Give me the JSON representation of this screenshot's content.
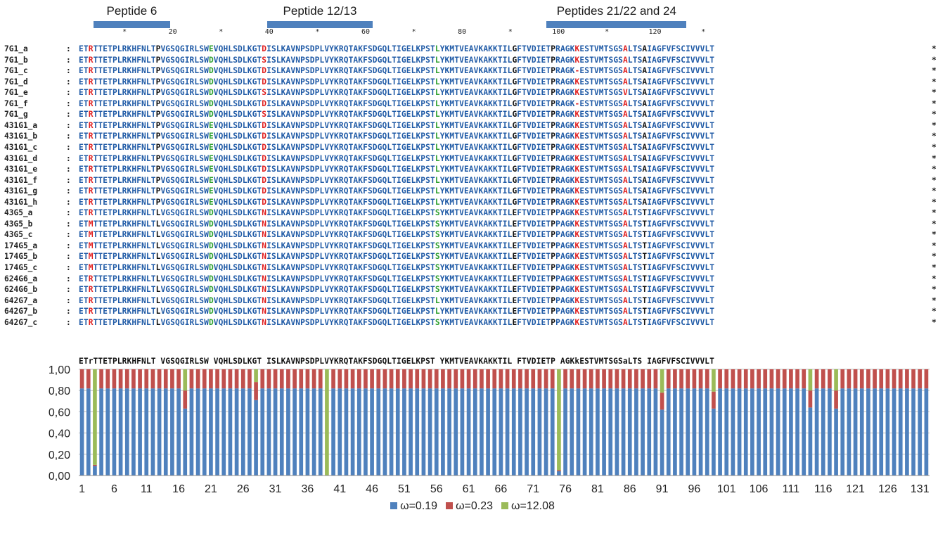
{
  "peptides": [
    {
      "label": "Peptide 6",
      "from": 4,
      "to": 19
    },
    {
      "label": "Peptide 12/13",
      "from": 40,
      "to": 61
    },
    {
      "label": "Peptides 21/22 and 24",
      "from": 98,
      "to": 126
    }
  ],
  "ruler": [
    {
      "pos": 10,
      "text": "*"
    },
    {
      "pos": 20,
      "text": "20"
    },
    {
      "pos": 30,
      "text": "*"
    },
    {
      "pos": 40,
      "text": "40"
    },
    {
      "pos": 50,
      "text": "*"
    },
    {
      "pos": 60,
      "text": "60"
    },
    {
      "pos": 70,
      "text": "*"
    },
    {
      "pos": 80,
      "text": "80"
    },
    {
      "pos": 90,
      "text": "*"
    },
    {
      "pos": 100,
      "text": "100"
    },
    {
      "pos": 110,
      "text": "*"
    },
    {
      "pos": 120,
      "text": "120"
    },
    {
      "pos": 130,
      "text": "*"
    }
  ],
  "alignment": {
    "colon": ":",
    "end_mark": "*",
    "sequences": [
      {
        "name": "7G1_a",
        "seq": "ETRTTETPLRKHFNLTPVGSQGIRLSWEVQHLSDLKGTDISLKAVNPSDPLVYKRQTAKFSDGQLTIGELKPSTLYKMTVEAVKAKKTILGFTVDIETPRAGKKESTVMTSGSALTSAIAGFVFSCIVVVLT"
      },
      {
        "name": "7G1_b",
        "seq": "ETRTTETPLRKHFNLTPVGSQGIRLSWDVQHLSDLKGTSISLKAVNPSDPLVYKRQTAKFSDGQLTIGELKPSTLYKMTVEAVKAKKTILGFTVDIETPRAGKKESTVMTSGSALTSAIAGFVFSCIVVVLT"
      },
      {
        "name": "7G1_c",
        "seq": "ETRTTETPLRKHFNLTPVGSQGIRLSWDVQHLSDLKGTDISLKAVNPSDPLVYKRQTAKFSDGQLTIGELKPSTLYKMTVEAVKAKKTILGFTVDIETPRAGK-ESTVMTSGSALTSAIAGFVFSCIVVVLT"
      },
      {
        "name": "7G1_d",
        "seq": "ETRTTETPLRKHFNLTPVGSQGIRLSWDVQHLSDLKGTDISLKAVNPSDPLVYKRQTAKFSDGQLTIGELKPSTLYKMTVEAVKAKKTILGFTVDIETPRAGKKESTVMTSGSALTSAIAGFVFSCIVVVLT"
      },
      {
        "name": "7G1_e",
        "seq": "ETRTTETPLRKHFNLTPVGSQGIRLSWDVQHLSDLKGTSISLKAVNPSDPLVYKRQTAKFSDGQLTIGELKPSTLYKMTVEAVKAKKTILGFTVDIETPRAGKKESTVMTSGSVLTSAIAGFVFSCIVVVLT"
      },
      {
        "name": "7G1_f",
        "seq": "ETRTTETPLRKHFNLTPVGSQGIRLSWDVQHLSDLKGTDISLKAVNPSDPLVYKRQTAKFSDGQLTIGELKPSTLYKMTVEAVKAKKTILGFTVDIETPRAGK-ESTVMTSGSALTSAIAGFVFSCIVVVLT"
      },
      {
        "name": "7G1_g",
        "seq": "ETRTTETPLRKHFNLTPVGSQGIRLSWDVQHLSDLKGTSISLKAVNPSDPLVYKRQTAKFSDGQLTIGELKPSTLYKMTVEAVKAKKTILGFTVDIETPRAGKKESTVMTSGSALTSAIAGFVFSCIVVVLT"
      },
      {
        "name": "431G1_a",
        "seq": "ETRTTETPLRKHFNLTPVGSQGIRLSWEVQHLSDLKGTDISLKAVNPSDPLVYKRQTAKFSDGQLTIGELKPSTLYKMTVEAVKAKKTILGFTVDIETPRAGKKESTVMTSGSALTSAIAGFVFSCIVVVLT"
      },
      {
        "name": "431G1_b",
        "seq": "ETRTTETPLRKHFNLTPVGSQGIRLSWEVQHLSDLKGTDISLKAVNPSDPLVYKRQTAKFSDGQLTIGELKPSTLYKMTVEAVKAKKTILGFTVDIETPRAGKKESTVMTSGSALTSAIAGFVFSCIVVVLT"
      },
      {
        "name": "431G1_c",
        "seq": "ETRTTETPLRKHFNLTPVGSQGIRLSWEVQHLSDLKGTDISLKAVNPSDPLVYKRQTAKFSDGQLTIGELKPSTLYKMTVEAVKAKKTILGFTVDIETPRAGKKESTVMTSGSALTSAIAGFVFSCIVVVLT"
      },
      {
        "name": "431G1_d",
        "seq": "ETRTTETPLRKHFNLTPVGSQGIRLSWEVQHLSDLKGTDISLKAVNPSDPLVYKRQTAKFSDGQLTIGELKPSTLYKMTVEAVKAKKTILGFTVDIETPRAGKKESTVMTSGSALTSAIAGFVFSCIVVVLT"
      },
      {
        "name": "431G1_e",
        "seq": "ETRTTETPLRKHFNLTPVGSQGIRLSWEVQHLSDLKGTDISLKAVNPSDPLVYKRQTAKFSDGQLTIGELKPSTLYKMTVEAVKAKKTILGFTVDIETPRAGKKESTVMTSGSALTSAIAGFVFSCIVVVLT"
      },
      {
        "name": "431G1_f",
        "seq": "ETRTTETPLRKHFNLTPVGSQGIRLSWEVQHLSDLKGTDISLKAVNPSDPLVYKRQTAKFSDGQLTIGELKPSTLYKMTVEAVKAKKTILGFTVDIETPRAGKKESTVMTSGSALTSAIAGFVFSCIVVVLT"
      },
      {
        "name": "431G1_g",
        "seq": "ETRTTETPLRKHFNLTPVGSQGIRLSWEVQHLSDLKGTDISLKAVNPSDPLVYKRQTAKFSDGQLTIGELKPSTLYKMTVEAVKAKKTILGFTVDIETPRAGKKESTVMTSGSALTSAIAGFVFSCIVVVLT"
      },
      {
        "name": "431G1_h",
        "seq": "ETRTTETPLRKHFNLTPVGSQGIRLSWEVQHLSDLKGTDISLKAVNPSDPLVYKRQTAKFSDGQLTIGELKPSTLYKMTVEAVKAKKTILGFTVDIETPRAGKKESTVMTSGSALTSAIAGFVFSCIVVVLT"
      },
      {
        "name": "43G5_a",
        "seq": "ETRTTETPLRKHFNLTLVGSQGIRLSWDVQHLSDLKGTNISLKAVNPSDPLVYKRQTAKFSDGQLTIGELKPSTSYKMTVEAVKAKKTILEFTVDIETPPAGKKESTVMTSGSALTSTIAGFVFSCIVVVLT"
      },
      {
        "name": "43G5_b",
        "seq": "ETMTTETPLRKHFNLTLVGSQGIRLSWDVQHLSDLKGTNISLKAVNPSDPLVYKRQTAKFSDGQLTIGELKPSTSYKMTVEAVKAKKTILEFTVDIETPPAGKKESTVMTSGSALTSTIAGFVFSCIVVVLT"
      },
      {
        "name": "43G5_c",
        "seq": "ETMTTETPLRKHFNLTLVGSQGIRLSWDVQHLSDLKGTNISLKAVNPSDPLVYKRQTAKFSDGQLTIGELKPSTSYKMTVEAVKAKKTILEFTVDIETPPAGKKESTVMTSGSALTSTIAGFVFSCIVVVLT"
      },
      {
        "name": "174G5_a",
        "seq": "ETMTTETPLRKHFNLTLVGSQGIRLSWDVQHLSDLKGTNISLKAVNPSDPLVYKRQTAKFSDGQLTIGELKPSTSYKMTVEAVKAKKTILEFTVDIETPPAGKKESTVMTSGSALTSTIAGFVFSCIVVVLT"
      },
      {
        "name": "174G5_b",
        "seq": "ETMTTETPLRKHFNLTLVGSQGIRLSWDVQHLSDLKGTNISLKAVNPSDPLVYKRQTAKFSDGQLTIGELKPSTSYKMTVEAVKAKKTILEFTVDIETPPAGKKESTVMTSGSALTSTIAGFVFSCIVVVLT"
      },
      {
        "name": "174G5_c",
        "seq": "ETMTTETPLRKHFNLTLVGSQGIRLSWDVQHLSDLKGTNISLKAVNPSDPLVYKRQTAKFSDGQLTIGELKPSTSYKMTVEAVKAKKTILEFTVDIETPPAGKKESTVMTSGSALTSTIAGFVFSCIVVVLT"
      },
      {
        "name": "624G6_a",
        "seq": "ETRTTETPLRKHFNLTLVGSQGIRLSWDVQHLSDLKGTNISLKAVNPSDPLVYKRQTAKFSDGQLTIGELKPSTSYKMTVEAVKAKKTILEFTVDIETPPAGKKESTVMTSGSALTSTIAGFVFSCIVVVLT"
      },
      {
        "name": "624G6_b",
        "seq": "ETRTTETPLRKHFNLTLVGSQGIRLSWDVQHLSDLKGTNISLKAVNPSDPLVYKRQTAKFSDGQLTIGELKPSTSYKMTVEAVKAKKTILEFTVDIETPPAGKKESTVMTSGSALTSTIAGFVFSCIVVVLT"
      },
      {
        "name": "642G7_a",
        "seq": "ETRTTETPLRKHFNLTLVGSQGIRLSWDVQHLSDLKGTNISLKAVNPSDPLVYKRQTAKFSDGQLTIGELKPSTLYKMTVEAVKAKKTILEFTVDIETPPAGKKESTVMTSGSALTSTIAGFVFSCIVVVLT"
      },
      {
        "name": "642G7_b",
        "seq": "ETRTTETPLRKHFNLTLVGSQGIRLSWDVQHLSDLKGTNISLKAVNPSDPLVYKRQTAKFSDGQLTIGELKPSTLYKMTVEAVKAKKTILEFTVDIETPPAGKKESTVMTSGSALTSTIAGFVFSCIVVVLT"
      },
      {
        "name": "642G7_c",
        "seq": "ETRTTETPLRKHFNLTLVGSQGIRLSWDVQHLSDLKGTNISLKAVNPSDPLVYKRQTAKFSDGQLTIGELKPSTSYKMTVEAVKAKKTILEFTVDIETPPAGKKESTVMTSGSALTSTIAGFVFSCIVVVLT"
      }
    ],
    "consensus": "ETrTTETPLRKHFNLT VGSQGIRLSW VQHLSDLKGT ISLKAVNPSDPLVYKRQTAKFSDGQLTIGELKPST YKMTVEAVKAKKTIL FTVDIETP AGKkESTVMTSGSaLTS IAGFVFSCIVVVLT",
    "red_columns": [
      3,
      39,
      104,
      114
    ],
    "green_columns": [
      28,
      75
    ],
    "dark_columns": [
      17,
      28,
      39,
      75,
      91,
      99,
      118
    ]
  },
  "chart_data": {
    "type": "bar",
    "stacked": true,
    "title": "",
    "xlabel": "",
    "ylabel": "",
    "ylim": [
      0,
      1
    ],
    "yticks": [
      "0,00",
      "0,20",
      "0,40",
      "0,60",
      "0,80",
      "1,00"
    ],
    "x_tick_labels": [
      "1",
      "6",
      "11",
      "16",
      "21",
      "26",
      "31",
      "36",
      "41",
      "46",
      "51",
      "56",
      "61",
      "66",
      "71",
      "76",
      "81",
      "86",
      "91",
      "96",
      "101",
      "106",
      "111",
      "116",
      "121",
      "126",
      "131"
    ],
    "n_sites": 132,
    "default_values": [
      0.82,
      0.18,
      0.0
    ],
    "overrides": {
      "3": [
        0.09,
        0.01,
        0.9
      ],
      "17": [
        0.63,
        0.17,
        0.2
      ],
      "28": [
        0.71,
        0.17,
        0.12
      ],
      "39": [
        0.0,
        0.0,
        1.0
      ],
      "75": [
        0.04,
        0.01,
        0.95
      ],
      "91": [
        0.62,
        0.16,
        0.22
      ],
      "99": [
        0.63,
        0.16,
        0.21
      ],
      "114": [
        0.64,
        0.16,
        0.2
      ],
      "118": [
        0.63,
        0.17,
        0.2
      ]
    },
    "series": [
      {
        "name": "ω=0.19",
        "color": "#4f81bd"
      },
      {
        "name": "ω=0.23",
        "color": "#c0504d"
      },
      {
        "name": "ω=12.08",
        "color": "#9bbb59"
      }
    ],
    "grid": true,
    "legend_position": "bottom"
  },
  "colors": {
    "residue_blue": "#1f5aa6",
    "residue_red": "#e02020",
    "residue_green": "#2ea02e",
    "residue_dark": "#111111"
  }
}
